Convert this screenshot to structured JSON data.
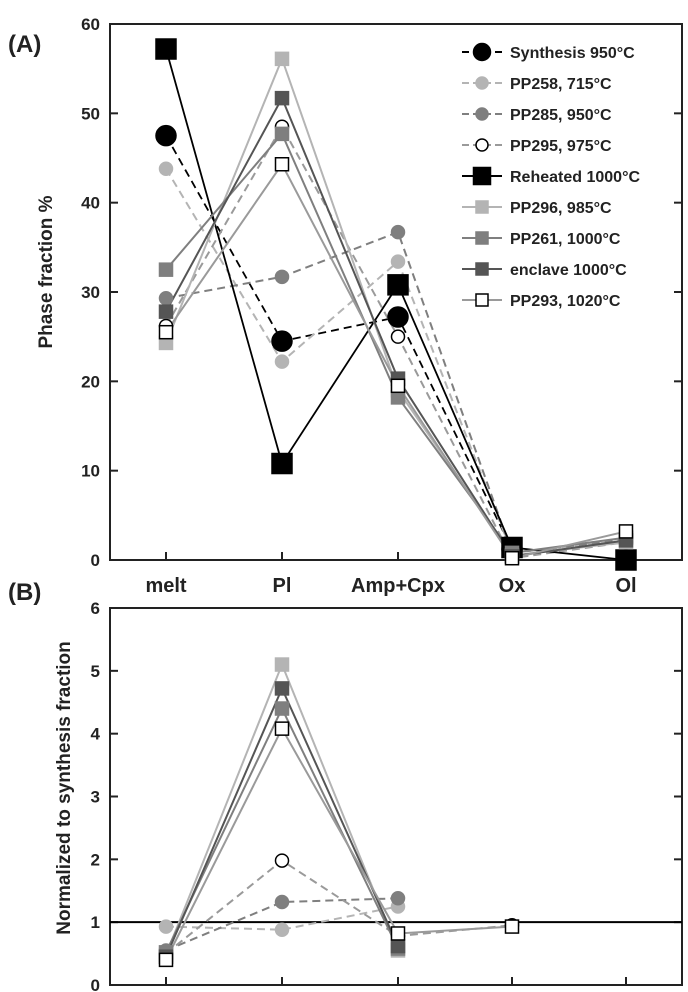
{
  "chart_data": [
    {
      "panel_label": "(A)",
      "type": "line",
      "ylabel": "Phase fraction %",
      "ylim": [
        0,
        60
      ],
      "yticks": [
        0,
        10,
        20,
        30,
        40,
        50,
        60
      ],
      "categories": [
        "melt",
        "Pl",
        "Amp+Cpx",
        "Ox",
        "Ol"
      ],
      "legend_position": "top-right",
      "series": [
        {
          "name": "Synthesis 950°C",
          "values": [
            47.5,
            24.5,
            27.2,
            1.2,
            null
          ],
          "color": "#000000",
          "marker": "circle",
          "fill": "#000000",
          "dash": true,
          "size": "large"
        },
        {
          "name": "PP258, 715°C",
          "values": [
            43.8,
            22.2,
            33.4,
            0.8,
            2.2
          ],
          "color": "#b4b4b4",
          "marker": "circle",
          "fill": "#b4b4b4",
          "dash": true,
          "size": "small"
        },
        {
          "name": "PP285, 950°C",
          "values": [
            29.3,
            31.7,
            36.7,
            0.8,
            2.3
          ],
          "color": "#7f7f7f",
          "marker": "circle",
          "fill": "#7f7f7f",
          "dash": true,
          "size": "small"
        },
        {
          "name": "PP295, 975°C",
          "values": [
            26.2,
            48.5,
            25.0,
            0.2,
            2.0
          ],
          "color": "#9a9a9a",
          "marker": "circle",
          "fill": "#ffffff",
          "dash": true,
          "size": "small"
        },
        {
          "name": "Reheated 1000°C",
          "values": [
            57.2,
            10.8,
            30.8,
            1.4,
            0.0
          ],
          "color": "#000000",
          "marker": "square",
          "fill": "#000000",
          "dash": false,
          "size": "large"
        },
        {
          "name": "PP296, 985°C",
          "values": [
            24.3,
            56.1,
            19.0,
            0.5,
            2.0
          ],
          "color": "#b4b4b4",
          "marker": "square",
          "fill": "#b4b4b4",
          "dash": false,
          "size": "small"
        },
        {
          "name": "PP261, 1000°C",
          "values": [
            32.5,
            47.7,
            18.2,
            0.8,
            2.5
          ],
          "color": "#7f7f7f",
          "marker": "square",
          "fill": "#7f7f7f",
          "dash": false,
          "size": "small"
        },
        {
          "name": "enclave 1000°C",
          "values": [
            27.8,
            51.7,
            20.3,
            0.4,
            2.2
          ],
          "color": "#555555",
          "marker": "square",
          "fill": "#555555",
          "dash": false,
          "size": "small"
        },
        {
          "name": "PP293, 1020°C",
          "values": [
            25.5,
            44.3,
            19.5,
            0.2,
            3.2
          ],
          "color": "#9a9a9a",
          "marker": "square",
          "fill": "#ffffff",
          "dash": false,
          "size": "small"
        }
      ]
    },
    {
      "panel_label": "(B)",
      "type": "line",
      "ylabel": "Normalized to synthesis fraction",
      "ylim": [
        0,
        6
      ],
      "yticks": [
        0,
        1,
        2,
        3,
        4,
        5,
        6
      ],
      "categories": [
        "melt",
        "Pl",
        "Amp+Cpx",
        "Ox",
        "Ol"
      ],
      "reference_line": 1,
      "series": [
        {
          "name": "PP258, 715°C",
          "values": [
            0.93,
            0.88,
            1.25,
            null,
            null
          ],
          "color": "#b4b4b4",
          "marker": "circle",
          "fill": "#b4b4b4",
          "dash": true
        },
        {
          "name": "PP285, 950°C",
          "values": [
            0.55,
            1.32,
            1.38,
            null,
            null
          ],
          "color": "#7f7f7f",
          "marker": "circle",
          "fill": "#7f7f7f",
          "dash": true
        },
        {
          "name": "PP295, 975°C",
          "values": [
            0.5,
            1.98,
            0.78,
            0.95,
            null
          ],
          "color": "#9a9a9a",
          "marker": "circle",
          "fill": "#ffffff",
          "dash": true
        },
        {
          "name": "PP296, 985°C",
          "values": [
            0.48,
            5.1,
            0.55,
            null,
            null
          ],
          "color": "#b4b4b4",
          "marker": "square",
          "fill": "#b4b4b4",
          "dash": false
        },
        {
          "name": "PP261, 1000°C",
          "values": [
            0.52,
            4.4,
            0.58,
            null,
            null
          ],
          "color": "#7f7f7f",
          "marker": "square",
          "fill": "#7f7f7f",
          "dash": false
        },
        {
          "name": "enclave 1000°C",
          "values": [
            0.45,
            4.72,
            0.62,
            null,
            null
          ],
          "color": "#555555",
          "marker": "square",
          "fill": "#555555",
          "dash": false
        },
        {
          "name": "PP293, 1020°C",
          "values": [
            0.4,
            4.08,
            0.82,
            0.93,
            null
          ],
          "color": "#9a9a9a",
          "marker": "square",
          "fill": "#ffffff",
          "dash": false
        }
      ]
    }
  ]
}
